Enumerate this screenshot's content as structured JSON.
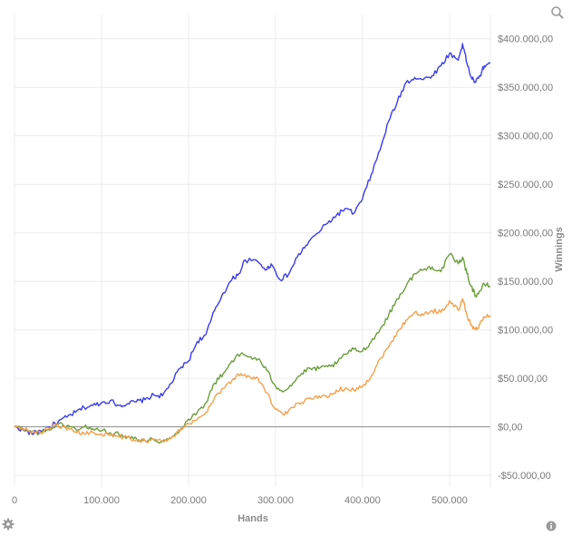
{
  "chart_data": {
    "type": "line",
    "xlabel": "Hands",
    "ylabel": "Winnings",
    "xlim": [
      0,
      547000
    ],
    "ylim": [
      -62000,
      425000
    ],
    "x_ticks": [
      0,
      100000,
      200000,
      300000,
      400000,
      500000
    ],
    "x_tick_labels": [
      "0",
      "100.000",
      "200.000",
      "300.000",
      "400.000",
      "500.000"
    ],
    "y_ticks": [
      -50000,
      0,
      50000,
      100000,
      150000,
      200000,
      250000,
      300000,
      350000,
      400000
    ],
    "y_tick_labels": [
      "-$50.000,00",
      "$0,00",
      "$50.000,00",
      "$100.000,00",
      "$150.000,00",
      "$200.000,00",
      "$250.000,00",
      "$300.000,00",
      "$350.000,00",
      "$400.000,00"
    ],
    "grid": true,
    "series": [
      {
        "color": "#3a3af0",
        "points": [
          [
            0,
            0
          ],
          [
            10000,
            -3000
          ],
          [
            20000,
            -7000
          ],
          [
            30000,
            -4000
          ],
          [
            40000,
            0
          ],
          [
            50000,
            5000
          ],
          [
            60000,
            10000
          ],
          [
            70000,
            15000
          ],
          [
            80000,
            20000
          ],
          [
            90000,
            22000
          ],
          [
            100000,
            25000
          ],
          [
            110000,
            27000
          ],
          [
            120000,
            22000
          ],
          [
            130000,
            24000
          ],
          [
            140000,
            26000
          ],
          [
            150000,
            28000
          ],
          [
            160000,
            33000
          ],
          [
            170000,
            32000
          ],
          [
            180000,
            45000
          ],
          [
            190000,
            60000
          ],
          [
            200000,
            68000
          ],
          [
            210000,
            88000
          ],
          [
            220000,
            95000
          ],
          [
            230000,
            120000
          ],
          [
            240000,
            138000
          ],
          [
            250000,
            152000
          ],
          [
            258000,
            158000
          ],
          [
            265000,
            172000
          ],
          [
            280000,
            170000
          ],
          [
            290000,
            162000
          ],
          [
            295000,
            168000
          ],
          [
            305000,
            152000
          ],
          [
            315000,
            157000
          ],
          [
            325000,
            175000
          ],
          [
            335000,
            187000
          ],
          [
            345000,
            197000
          ],
          [
            360000,
            210000
          ],
          [
            370000,
            218000
          ],
          [
            380000,
            225000
          ],
          [
            390000,
            220000
          ],
          [
            400000,
            235000
          ],
          [
            410000,
            260000
          ],
          [
            420000,
            285000
          ],
          [
            430000,
            315000
          ],
          [
            440000,
            335000
          ],
          [
            450000,
            355000
          ],
          [
            460000,
            360000
          ],
          [
            470000,
            358000
          ],
          [
            480000,
            362000
          ],
          [
            490000,
            372000
          ],
          [
            500000,
            385000
          ],
          [
            510000,
            378000
          ],
          [
            515000,
            395000
          ],
          [
            520000,
            375000
          ],
          [
            525000,
            360000
          ],
          [
            530000,
            355000
          ],
          [
            535000,
            362000
          ],
          [
            540000,
            372000
          ],
          [
            547000,
            375000
          ]
        ]
      },
      {
        "color": "#6a9e3c",
        "points": [
          [
            0,
            0
          ],
          [
            10000,
            -2000
          ],
          [
            20000,
            -5000
          ],
          [
            30000,
            -6000
          ],
          [
            40000,
            -3000
          ],
          [
            50000,
            3000
          ],
          [
            60000,
            1000
          ],
          [
            70000,
            -2000
          ],
          [
            80000,
            0
          ],
          [
            90000,
            -2000
          ],
          [
            100000,
            -4000
          ],
          [
            110000,
            -6000
          ],
          [
            120000,
            -8000
          ],
          [
            130000,
            -10000
          ],
          [
            140000,
            -12000
          ],
          [
            150000,
            -14000
          ],
          [
            160000,
            -13000
          ],
          [
            170000,
            -15000
          ],
          [
            180000,
            -12000
          ],
          [
            190000,
            -3000
          ],
          [
            200000,
            8000
          ],
          [
            210000,
            15000
          ],
          [
            220000,
            25000
          ],
          [
            230000,
            45000
          ],
          [
            240000,
            55000
          ],
          [
            250000,
            68000
          ],
          [
            260000,
            75000
          ],
          [
            270000,
            72000
          ],
          [
            280000,
            70000
          ],
          [
            290000,
            58000
          ],
          [
            300000,
            42000
          ],
          [
            310000,
            37000
          ],
          [
            320000,
            45000
          ],
          [
            330000,
            55000
          ],
          [
            340000,
            60000
          ],
          [
            350000,
            60000
          ],
          [
            360000,
            62000
          ],
          [
            370000,
            65000
          ],
          [
            380000,
            75000
          ],
          [
            390000,
            80000
          ],
          [
            400000,
            78000
          ],
          [
            410000,
            88000
          ],
          [
            420000,
            100000
          ],
          [
            430000,
            115000
          ],
          [
            440000,
            132000
          ],
          [
            450000,
            145000
          ],
          [
            460000,
            158000
          ],
          [
            470000,
            162000
          ],
          [
            480000,
            165000
          ],
          [
            490000,
            160000
          ],
          [
            500000,
            178000
          ],
          [
            510000,
            168000
          ],
          [
            515000,
            175000
          ],
          [
            520000,
            158000
          ],
          [
            525000,
            145000
          ],
          [
            530000,
            135000
          ],
          [
            535000,
            140000
          ],
          [
            540000,
            147000
          ],
          [
            547000,
            145000
          ]
        ]
      },
      {
        "color": "#f5a04a",
        "points": [
          [
            0,
            0
          ],
          [
            10000,
            -2000
          ],
          [
            20000,
            -5000
          ],
          [
            30000,
            -6000
          ],
          [
            40000,
            -2000
          ],
          [
            50000,
            2000
          ],
          [
            60000,
            -3000
          ],
          [
            70000,
            -5000
          ],
          [
            80000,
            -7000
          ],
          [
            90000,
            -6000
          ],
          [
            100000,
            -7000
          ],
          [
            110000,
            -8000
          ],
          [
            120000,
            -10000
          ],
          [
            130000,
            -11000
          ],
          [
            140000,
            -13000
          ],
          [
            150000,
            -14000
          ],
          [
            160000,
            -13000
          ],
          [
            170000,
            -15000
          ],
          [
            180000,
            -12000
          ],
          [
            190000,
            -4000
          ],
          [
            200000,
            3000
          ],
          [
            210000,
            8000
          ],
          [
            220000,
            15000
          ],
          [
            230000,
            30000
          ],
          [
            240000,
            40000
          ],
          [
            250000,
            48000
          ],
          [
            260000,
            55000
          ],
          [
            270000,
            52000
          ],
          [
            280000,
            50000
          ],
          [
            290000,
            35000
          ],
          [
            300000,
            18000
          ],
          [
            310000,
            12000
          ],
          [
            320000,
            20000
          ],
          [
            330000,
            25000
          ],
          [
            340000,
            30000
          ],
          [
            350000,
            32000
          ],
          [
            360000,
            30000
          ],
          [
            370000,
            38000
          ],
          [
            380000,
            40000
          ],
          [
            390000,
            38000
          ],
          [
            400000,
            42000
          ],
          [
            410000,
            52000
          ],
          [
            420000,
            70000
          ],
          [
            430000,
            82000
          ],
          [
            440000,
            98000
          ],
          [
            450000,
            110000
          ],
          [
            460000,
            118000
          ],
          [
            470000,
            115000
          ],
          [
            480000,
            120000
          ],
          [
            490000,
            118000
          ],
          [
            500000,
            130000
          ],
          [
            510000,
            120000
          ],
          [
            515000,
            132000
          ],
          [
            520000,
            115000
          ],
          [
            525000,
            105000
          ],
          [
            530000,
            100000
          ],
          [
            535000,
            106000
          ],
          [
            540000,
            113000
          ],
          [
            547000,
            115000
          ]
        ]
      }
    ]
  }
}
